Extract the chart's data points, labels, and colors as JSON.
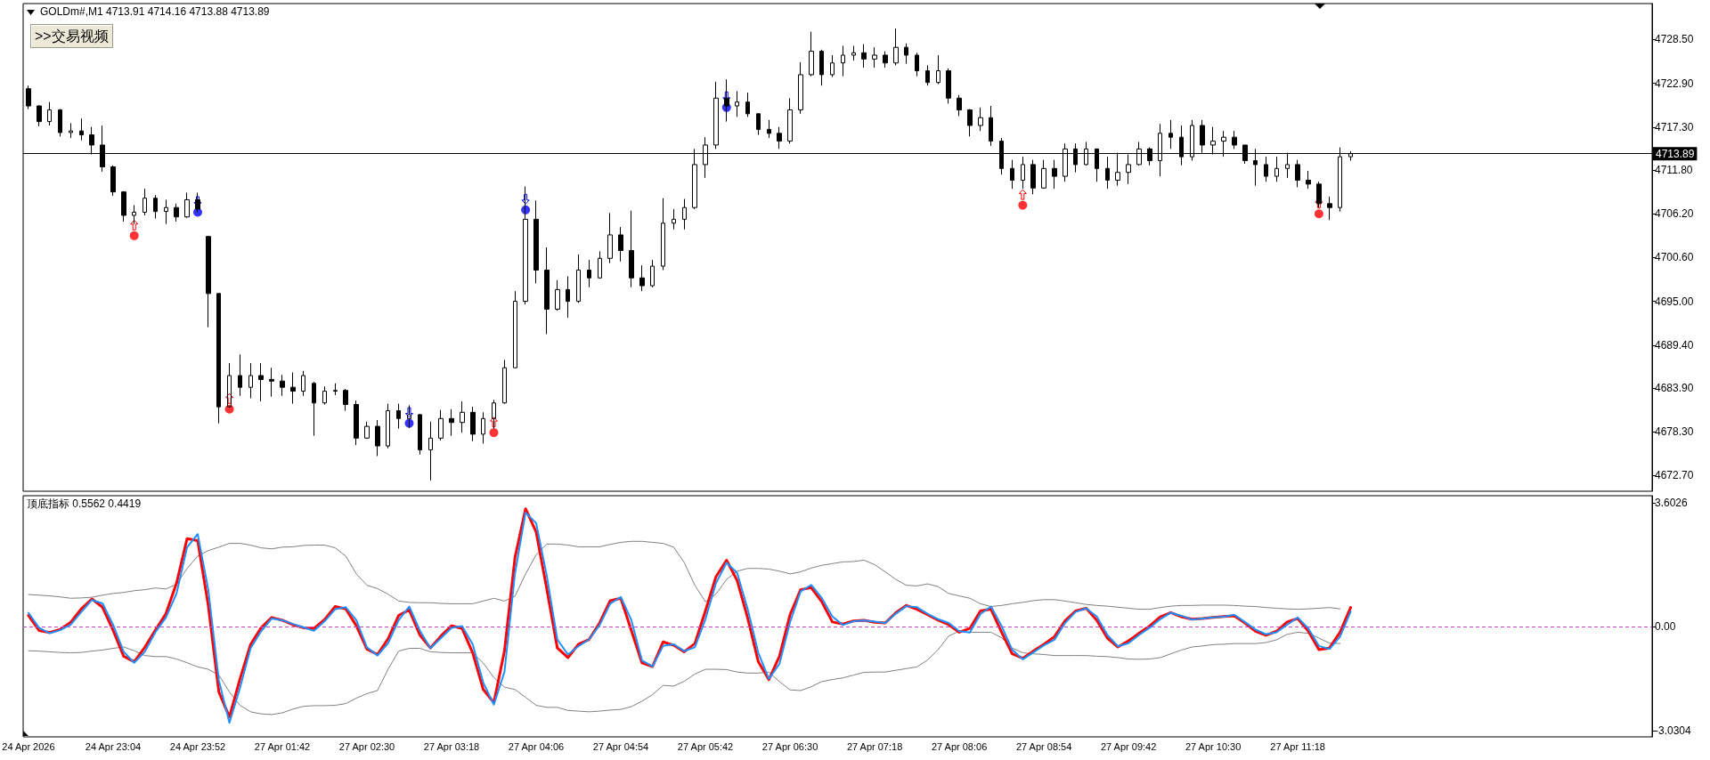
{
  "chart_data": [
    {
      "type": "candlestick",
      "title": "GOLDm#,M1 4713.91 4714.16 4713.88 4713.89",
      "color": "#000000",
      "marker": "circle",
      "tick_labels": "y",
      "categories": [
        null,
        null,
        null,
        null,
        null,
        null,
        null,
        null,
        null,
        null,
        null,
        null,
        null,
        null,
        null,
        null,
        null,
        null,
        null,
        null,
        null,
        null,
        null,
        null,
        null,
        null,
        null,
        null,
        null,
        null,
        null,
        null,
        null,
        null,
        null,
        null,
        null,
        null,
        null,
        null,
        null,
        null,
        null,
        null,
        null,
        null,
        null,
        null,
        null,
        null,
        null,
        null,
        null,
        null,
        null,
        null,
        null,
        null,
        null,
        null,
        null,
        null,
        null,
        null,
        null,
        null,
        null,
        null,
        null,
        null,
        null,
        null,
        null,
        null,
        null,
        null,
        null,
        null,
        null,
        null,
        null,
        null,
        null,
        null,
        null,
        null,
        null,
        null,
        null,
        null,
        null,
        null,
        null,
        null,
        null,
        null,
        null,
        null,
        null,
        null,
        null,
        null,
        null,
        null,
        null,
        null,
        null,
        null,
        null,
        null,
        null,
        null,
        null,
        null,
        null,
        null,
        null,
        null,
        null,
        null,
        null,
        null,
        null,
        null,
        null,
        null,
        null,
        null,
        null,
        null,
        null,
        null,
        null,
        null,
        null,
        null,
        null,
        null,
        null,
        null,
        null,
        null,
        null,
        null,
        null,
        null,
        null,
        null,
        null,
        null,
        null,
        null,
        null,
        null
      ],
      "ohlc": [
        [
          4722.2,
          4722.6,
          4719.6,
          4720.0
        ],
        [
          4720.0,
          4720.1,
          4717.4,
          4718.0
        ],
        [
          4718.0,
          4720.5,
          4717.5,
          4719.5
        ],
        [
          4719.5,
          4719.6,
          4716.1,
          4716.6
        ],
        [
          4716.6,
          4717.8,
          4715.9,
          4716.8
        ],
        [
          4716.8,
          4718.4,
          4715.6,
          4716.3
        ],
        [
          4716.3,
          4717.3,
          4713.8,
          4715.0
        ],
        [
          4715.0,
          4717.5,
          4711.6,
          4712.2
        ],
        [
          4712.2,
          4712.4,
          4708.5,
          4709.0
        ],
        [
          4709.0,
          4709.1,
          4705.2,
          4706.0
        ],
        [
          4706.0,
          4707.3,
          4704.9,
          4706.4
        ],
        [
          4706.4,
          4709.4,
          4706.0,
          4708.2
        ],
        [
          4708.2,
          4708.6,
          4705.6,
          4706.5
        ],
        [
          4706.5,
          4708.0,
          4704.9,
          4707.0
        ],
        [
          4707.0,
          4707.5,
          4705.2,
          4705.8
        ],
        [
          4705.8,
          4708.9,
          4705.7,
          4708.0
        ],
        [
          4708.0,
          4708.9,
          4706.4,
          4706.8
        ],
        [
          4703.3,
          4703.3,
          4691.7,
          4696.0
        ],
        [
          4696.0,
          4696.0,
          4679.4,
          4681.5
        ],
        [
          4681.5,
          4687.1,
          4681.4,
          4685.5
        ],
        [
          4685.5,
          4688.2,
          4682.9,
          4684.0
        ],
        [
          4684.0,
          4687.1,
          4682.6,
          4685.5
        ],
        [
          4685.5,
          4687.1,
          4682.2,
          4685.0
        ],
        [
          4685.0,
          4686.5,
          4682.8,
          4684.8
        ],
        [
          4684.8,
          4685.6,
          4682.9,
          4684.0
        ],
        [
          4684.0,
          4685.9,
          4681.9,
          4683.5
        ],
        [
          4683.5,
          4686.1,
          4682.9,
          4685.5
        ],
        [
          4684.5,
          4684.7,
          4677.8,
          4682.0
        ],
        [
          4682.0,
          4684.1,
          4681.8,
          4683.5
        ],
        [
          4683.5,
          4684.5,
          4683.0,
          4683.6
        ],
        [
          4683.6,
          4683.8,
          4681.0,
          4681.8
        ],
        [
          4681.8,
          4682.3,
          4676.6,
          4677.5
        ],
        [
          4677.5,
          4679.6,
          4677.4,
          4679.0
        ],
        [
          4679.0,
          4679.8,
          4675.2,
          4676.5
        ],
        [
          4676.5,
          4681.9,
          4676.2,
          4681.0
        ],
        [
          4681.0,
          4681.9,
          4678.7,
          4680.0
        ],
        [
          4680.0,
          4681.7,
          4678.8,
          4680.5
        ],
        [
          4680.5,
          4680.6,
          4675.4,
          4676.0
        ],
        [
          4676.0,
          4679.6,
          4672.1,
          4677.5
        ],
        [
          4677.5,
          4681.1,
          4677.2,
          4680.0
        ],
        [
          4680.0,
          4681.2,
          4677.8,
          4679.5
        ],
        [
          4679.5,
          4682.2,
          4678.2,
          4680.8
        ],
        [
          4680.8,
          4681.5,
          4677.1,
          4678.0
        ],
        [
          4678.0,
          4680.8,
          4676.8,
          4680.0
        ],
        [
          4680.0,
          4682.4,
          4678.7,
          4682.0
        ],
        [
          4682.0,
          4687.5,
          4681.9,
          4686.5
        ],
        [
          4686.5,
          4696.3,
          4686.5,
          4695.0
        ],
        [
          4695.0,
          4709.7,
          4694.6,
          4705.5
        ],
        [
          4705.5,
          4707.9,
          4697.3,
          4699.0
        ],
        [
          4699.0,
          4701.9,
          4690.8,
          4694.0
        ],
        [
          4694.0,
          4697.7,
          4693.8,
          4696.5
        ],
        [
          4696.5,
          4698.2,
          4692.9,
          4695.0
        ],
        [
          4695.0,
          4701.0,
          4694.8,
          4699.0
        ],
        [
          4699.0,
          4700.3,
          4696.8,
          4698.0
        ],
        [
          4698.0,
          4701.4,
          4697.9,
          4700.5
        ],
        [
          4700.5,
          4706.3,
          4699.9,
          4703.5
        ],
        [
          4703.5,
          4704.5,
          4700.1,
          4701.5
        ],
        [
          4701.5,
          4706.6,
          4696.8,
          4698.0
        ],
        [
          4698.0,
          4699.6,
          4696.3,
          4697.0
        ],
        [
          4697.0,
          4700.3,
          4696.8,
          4699.5
        ],
        [
          4699.5,
          4708.2,
          4699.0,
          4705.0
        ],
        [
          4705.0,
          4706.8,
          4704.2,
          4705.5
        ],
        [
          4705.5,
          4708.1,
          4704.2,
          4707.0
        ],
        [
          4707.0,
          4714.5,
          4706.8,
          4712.5
        ],
        [
          4712.5,
          4716.0,
          4710.8,
          4715.0
        ],
        [
          4715.0,
          4723.1,
          4714.5,
          4721.0
        ],
        [
          4721.0,
          4723.4,
          4718.0,
          4720.0
        ],
        [
          4720.0,
          4721.9,
          4718.6,
          4720.5
        ],
        [
          4720.5,
          4721.7,
          4718.6,
          4719.0
        ],
        [
          4719.0,
          4719.0,
          4716.3,
          4717.0
        ],
        [
          4717.0,
          4718.2,
          4715.9,
          4716.5
        ],
        [
          4716.5,
          4717.3,
          4714.5,
          4715.5
        ],
        [
          4715.5,
          4721.0,
          4715.2,
          4719.5
        ],
        [
          4719.5,
          4725.6,
          4719.0,
          4724.0
        ],
        [
          4724.0,
          4729.5,
          4723.8,
          4727.0
        ],
        [
          4727.0,
          4727.2,
          4722.6,
          4724.0
        ],
        [
          4724.0,
          4726.5,
          4723.7,
          4725.5
        ],
        [
          4725.5,
          4727.7,
          4723.8,
          4726.5
        ],
        [
          4726.5,
          4727.7,
          4725.8,
          4726.8
        ],
        [
          4726.8,
          4727.9,
          4724.9,
          4726.0
        ],
        [
          4726.0,
          4727.5,
          4724.9,
          4726.5
        ],
        [
          4726.5,
          4727.0,
          4724.9,
          4725.5
        ],
        [
          4725.5,
          4729.9,
          4725.2,
          4727.5
        ],
        [
          4727.5,
          4728.0,
          4725.4,
          4726.5
        ],
        [
          4726.5,
          4726.8,
          4723.8,
          4724.5
        ],
        [
          4724.5,
          4725.2,
          4722.6,
          4723.0
        ],
        [
          4723.0,
          4726.5,
          4722.8,
          4724.5
        ],
        [
          4724.5,
          4724.8,
          4720.3,
          4721.0
        ],
        [
          4721.0,
          4721.4,
          4718.7,
          4719.5
        ],
        [
          4719.5,
          4719.6,
          4716.1,
          4717.5
        ],
        [
          4717.5,
          4719.8,
          4716.8,
          4718.5
        ],
        [
          4718.5,
          4720.0,
          4714.9,
          4715.5
        ],
        [
          4715.5,
          4715.9,
          4711.2,
          4712.0
        ],
        [
          4712.0,
          4713.1,
          4709.4,
          4710.5
        ],
        [
          4710.5,
          4713.5,
          4709.4,
          4712.5
        ],
        [
          4712.5,
          4713.1,
          4708.7,
          4709.5
        ],
        [
          4709.5,
          4713.1,
          4709.4,
          4712.0
        ],
        [
          4712.0,
          4713.1,
          4709.4,
          4711.0
        ],
        [
          4711.0,
          4715.2,
          4710.3,
          4714.5
        ],
        [
          4714.5,
          4715.2,
          4711.5,
          4712.5
        ],
        [
          4712.5,
          4715.4,
          4712.4,
          4714.5
        ],
        [
          4714.5,
          4714.5,
          4710.3,
          4712.0
        ],
        [
          4712.0,
          4713.5,
          4709.4,
          4710.5
        ],
        [
          4710.5,
          4714.0,
          4709.8,
          4711.5
        ],
        [
          4711.5,
          4713.8,
          4710.0,
          4712.5
        ],
        [
          4712.5,
          4715.4,
          4712.4,
          4714.5
        ],
        [
          4714.5,
          4714.7,
          4712.4,
          4713.0
        ],
        [
          4713.0,
          4717.7,
          4711.0,
          4716.5
        ],
        [
          4716.5,
          4718.2,
          4714.5,
          4716.0
        ],
        [
          4716.0,
          4717.5,
          4712.4,
          4713.5
        ],
        [
          4713.5,
          4718.2,
          4713.0,
          4717.5
        ],
        [
          4717.5,
          4718.2,
          4714.0,
          4715.0
        ],
        [
          4715.0,
          4717.3,
          4713.8,
          4715.5
        ],
        [
          4715.5,
          4716.8,
          4713.5,
          4716.0
        ],
        [
          4716.0,
          4716.8,
          4714.5,
          4715.0
        ],
        [
          4715.0,
          4715.0,
          4712.6,
          4713.0
        ],
        [
          4713.0,
          4714.5,
          4709.8,
          4712.5
        ],
        [
          4712.5,
          4713.5,
          4710.3,
          4711.0
        ],
        [
          4711.0,
          4713.5,
          4710.3,
          4712.0
        ],
        [
          4712.0,
          4714.0,
          4710.8,
          4712.5
        ],
        [
          4712.5,
          4713.1,
          4709.6,
          4710.5
        ],
        [
          4710.5,
          4711.7,
          4709.4,
          4710.0
        ],
        [
          4710.0,
          4710.3,
          4707.0,
          4707.5
        ],
        [
          4707.5,
          4708.4,
          4705.4,
          4707.0
        ],
        [
          4707.0,
          4714.7,
          4706.5,
          4713.5
        ],
        [
          4713.5,
          4714.2,
          4713.0,
          4713.9
        ],
        null,
        null,
        null,
        null,
        null,
        null,
        null,
        null,
        null,
        null,
        null,
        null,
        null,
        null,
        null,
        null,
        null,
        null,
        null,
        null,
        null,
        null,
        null,
        null,
        null,
        null,
        null,
        null
      ],
      "series": [
        {
          "type": "scatter",
          "color": "#ff0000",
          "values": [
            null,
            null,
            null,
            null,
            null,
            null,
            null,
            null,
            null,
            null,
            4703.4,
            null,
            null,
            null,
            null,
            null,
            null,
            null,
            null,
            4681.2,
            null,
            null,
            null,
            null,
            null,
            null,
            null,
            null,
            null,
            null,
            null,
            null,
            null,
            null,
            null,
            null,
            null,
            null,
            null,
            null,
            null,
            null,
            null,
            null,
            4678.2,
            null,
            null,
            null,
            null,
            null,
            null,
            null,
            null,
            null,
            null,
            null,
            null,
            null,
            null,
            null,
            null,
            null,
            null,
            null,
            null,
            null,
            null,
            null,
            null,
            null,
            null,
            null,
            null,
            null,
            null,
            null,
            null,
            null,
            null,
            null,
            null,
            null,
            null,
            null,
            null,
            null,
            null,
            null,
            null,
            null,
            null,
            null,
            null,
            null,
            4707.3,
            null,
            null,
            null,
            null,
            null,
            null,
            null,
            null,
            null,
            null,
            null,
            null,
            null,
            null,
            null,
            null,
            null,
            null,
            null,
            null,
            null,
            null,
            null,
            null,
            null,
            null,
            null,
            4706.2,
            null,
            null,
            null,
            null,
            null,
            null,
            null,
            null,
            null,
            null,
            null,
            null,
            null,
            null,
            null,
            null,
            null,
            null,
            null,
            null,
            null,
            null,
            null,
            null,
            null,
            null,
            null,
            null,
            null,
            null,
            null
          ]
        },
        {
          "type": "scatter",
          "color": "#0000ff",
          "values": [
            null,
            null,
            null,
            null,
            null,
            null,
            null,
            null,
            null,
            null,
            null,
            null,
            null,
            null,
            null,
            null,
            4706.4,
            null,
            null,
            null,
            null,
            null,
            null,
            null,
            null,
            null,
            null,
            null,
            null,
            null,
            null,
            null,
            null,
            null,
            null,
            null,
            4679.4,
            null,
            null,
            null,
            null,
            null,
            null,
            null,
            null,
            null,
            null,
            4706.7,
            null,
            null,
            null,
            null,
            null,
            null,
            null,
            null,
            null,
            null,
            null,
            null,
            null,
            null,
            null,
            null,
            null,
            null,
            4719.8,
            null,
            null,
            null,
            null,
            null,
            null,
            null,
            null,
            null,
            null,
            null,
            null,
            null,
            null,
            null,
            null,
            null,
            null,
            null,
            null,
            null,
            null,
            null,
            null,
            null,
            null,
            null,
            null,
            null,
            null,
            null,
            null,
            null,
            null,
            null,
            null,
            null,
            null,
            null,
            null,
            null,
            null,
            null,
            null,
            null,
            null,
            null,
            null,
            null,
            null,
            null,
            null,
            null,
            null,
            null,
            null,
            null,
            null,
            null,
            null,
            null,
            null,
            null,
            null,
            null,
            null,
            null,
            null,
            null,
            null,
            null,
            null,
            null,
            null,
            null,
            null,
            null,
            null,
            null,
            null,
            null,
            null,
            null,
            null,
            null,
            null,
            null
          ]
        }
      ],
      "ylim": [
        4670.7,
        4733.1
      ],
      "yticks": [
        {
          "value": 4672.7,
          "label": "4672.70"
        },
        {
          "value": 4678.3,
          "label": "4678.30"
        },
        {
          "value": 4683.9,
          "label": "4683.90"
        },
        {
          "value": 4689.4,
          "label": "4689.40"
        },
        {
          "value": 4695,
          "label": "4695.00"
        },
        {
          "value": 4700.6,
          "label": "4700.60"
        },
        {
          "value": 4706.2,
          "label": "4706.20"
        },
        {
          "value": 4711.8,
          "label": "4711.80"
        },
        {
          "value": 4717.3,
          "label": "4717.30"
        },
        {
          "value": 4722.9,
          "label": "4722.90"
        },
        {
          "value": 4728.5,
          "label": "4728.50"
        }
      ],
      "ref_lines": [
        {
          "axis": "y",
          "value": 4713.89,
          "label": "4713.89",
          "color": "#000000"
        }
      ],
      "annotations": [
        ">>交易视频"
      ],
      "grid": false
    },
    {
      "type": "line",
      "title": "顶底指标 0.5562 0.4419",
      "marker": "none",
      "categories": [
        "24 Apr 2026",
        null,
        null,
        null,
        null,
        null,
        null,
        null,
        "24 Apr 23:04",
        null,
        null,
        null,
        null,
        null,
        null,
        null,
        "24 Apr 23:52",
        null,
        null,
        null,
        null,
        null,
        null,
        null,
        "27 Apr 01:42",
        null,
        null,
        null,
        null,
        null,
        null,
        null,
        "27 Apr 02:30",
        null,
        null,
        null,
        null,
        null,
        null,
        null,
        "27 Apr 03:18",
        null,
        null,
        null,
        null,
        null,
        null,
        null,
        "27 Apr 04:06",
        null,
        null,
        null,
        null,
        null,
        null,
        null,
        "27 Apr 04:54",
        null,
        null,
        null,
        null,
        null,
        null,
        null,
        "27 Apr 05:42",
        null,
        null,
        null,
        null,
        null,
        null,
        null,
        "27 Apr 06:30",
        null,
        null,
        null,
        null,
        null,
        null,
        null,
        "27 Apr 07:18",
        null,
        null,
        null,
        null,
        null,
        null,
        null,
        "27 Apr 08:06",
        null,
        null,
        null,
        null,
        null,
        null,
        null,
        "27 Apr 08:54",
        null,
        null,
        null,
        null,
        null,
        null,
        null,
        "27 Apr 09:42",
        null,
        null,
        null,
        null,
        null,
        null,
        null,
        "27 Apr 10:30",
        null,
        null,
        null,
        null,
        null,
        null,
        null,
        "27 Apr 11:18",
        null,
        null,
        null,
        null,
        null,
        null,
        null,
        null,
        null,
        null,
        null,
        null,
        null,
        null,
        null,
        null,
        null,
        null,
        null,
        null,
        null,
        null,
        null,
        null,
        null,
        null,
        null,
        null,
        null,
        null,
        null,
        null,
        null
      ],
      "series": [
        {
          "color": "#808080",
          "values": [
            0.94,
            0.92,
            0.9,
            0.87,
            0.83,
            0.84,
            0.86,
            0.92,
            0.97,
            1.0,
            1.05,
            1.08,
            1.13,
            1.1,
            1.24,
            1.7,
            2.06,
            2.22,
            2.32,
            2.43,
            2.43,
            2.38,
            2.3,
            2.27,
            2.32,
            2.33,
            2.37,
            2.38,
            2.38,
            2.3,
            2.06,
            1.54,
            1.21,
            1.11,
            0.95,
            0.75,
            0.71,
            0.7,
            0.7,
            0.68,
            0.67,
            0.67,
            0.67,
            0.75,
            0.83,
            0.75,
            0.89,
            1.54,
            2.1,
            2.41,
            2.41,
            2.38,
            2.33,
            2.33,
            2.33,
            2.4,
            2.46,
            2.49,
            2.49,
            2.46,
            2.43,
            2.32,
            1.87,
            1.21,
            0.73,
            0.95,
            1.38,
            1.62,
            1.7,
            1.7,
            1.68,
            1.62,
            1.54,
            1.6,
            1.71,
            1.79,
            1.84,
            1.89,
            1.9,
            1.94,
            1.81,
            1.6,
            1.38,
            1.21,
            1.19,
            1.25,
            1.17,
            0.97,
            0.9,
            0.83,
            0.67,
            0.59,
            0.62,
            0.67,
            0.71,
            0.76,
            0.79,
            0.79,
            0.75,
            0.7,
            0.65,
            0.62,
            0.6,
            0.57,
            0.54,
            0.51,
            0.51,
            0.56,
            0.6,
            0.62,
            0.62,
            0.63,
            0.63,
            0.63,
            0.62,
            0.6,
            0.59,
            0.56,
            0.54,
            0.52,
            0.51,
            0.52,
            0.54,
            0.56,
            0.52,
            null,
            null,
            null,
            null,
            null,
            null,
            null,
            null,
            null,
            null,
            null,
            null,
            null,
            null,
            null,
            null,
            null,
            null,
            null,
            null,
            null,
            null,
            null,
            null,
            null,
            null,
            null,
            null,
            null
          ]
        },
        {
          "color": "#808080",
          "values": [
            -0.7,
            -0.71,
            -0.73,
            -0.75,
            -0.76,
            -0.75,
            -0.71,
            -0.68,
            -0.63,
            -0.59,
            -0.7,
            -0.84,
            -0.87,
            -0.87,
            -0.94,
            -1.05,
            -1.17,
            -1.24,
            -1.41,
            -1.9,
            -2.29,
            -2.48,
            -2.54,
            -2.56,
            -2.51,
            -2.4,
            -2.32,
            -2.3,
            -2.3,
            -2.29,
            -2.24,
            -2.08,
            -1.95,
            -1.86,
            -1.24,
            -0.71,
            -0.63,
            -0.63,
            -0.73,
            -0.75,
            -0.76,
            -0.76,
            -0.76,
            -1.06,
            -1.48,
            -1.76,
            -1.83,
            -2.06,
            -2.29,
            -2.35,
            -2.35,
            -2.44,
            -2.46,
            -2.48,
            -2.46,
            -2.43,
            -2.41,
            -2.33,
            -2.17,
            -1.98,
            -1.71,
            -1.73,
            -1.59,
            -1.38,
            -1.24,
            -1.24,
            -1.25,
            -1.32,
            -1.35,
            -1.35,
            -1.32,
            -1.6,
            -1.84,
            -1.86,
            -1.75,
            -1.6,
            -1.54,
            -1.49,
            -1.41,
            -1.33,
            -1.32,
            -1.32,
            -1.27,
            -1.22,
            -1.17,
            -0.97,
            -0.67,
            -0.27,
            -0.13,
            -0.16,
            -0.16,
            -0.16,
            -0.32,
            -0.62,
            -0.76,
            -0.79,
            -0.81,
            -0.84,
            -0.84,
            -0.84,
            -0.84,
            -0.86,
            -0.87,
            -0.9,
            -0.94,
            -0.95,
            -0.94,
            -0.9,
            -0.79,
            -0.68,
            -0.59,
            -0.56,
            -0.52,
            -0.51,
            -0.49,
            -0.49,
            -0.49,
            -0.46,
            -0.38,
            -0.22,
            -0.16,
            -0.19,
            -0.33,
            -0.48,
            -0.49,
            null,
            null,
            null,
            null,
            null,
            null,
            null,
            null,
            null,
            null,
            null,
            null,
            null,
            null,
            null,
            null,
            null,
            null,
            null,
            null,
            null,
            null,
            null,
            null,
            null,
            null,
            null,
            null,
            null
          ]
        },
        {
          "color": "#ff0000",
          "values": [
            0.33,
            -0.11,
            -0.17,
            -0.08,
            0.13,
            0.52,
            0.81,
            0.57,
            -0.1,
            -0.86,
            -1.02,
            -0.6,
            -0.1,
            0.38,
            1.27,
            2.57,
            2.51,
            0.62,
            -1.9,
            -2.63,
            -1.52,
            -0.52,
            -0.03,
            0.27,
            0.19,
            0.06,
            -0.03,
            -0.05,
            0.21,
            0.59,
            0.52,
            0.03,
            -0.65,
            -0.81,
            -0.35,
            0.33,
            0.49,
            -0.24,
            -0.62,
            -0.27,
            0.03,
            -0.05,
            -0.76,
            -1.83,
            -2.21,
            -0.71,
            2.02,
            3.44,
            2.76,
            1.11,
            -0.62,
            -0.9,
            -0.51,
            -0.37,
            0.11,
            0.76,
            0.83,
            -0.11,
            -1.05,
            -1.16,
            -0.44,
            -0.54,
            -0.73,
            -0.49,
            0.46,
            1.46,
            1.94,
            1.35,
            0.25,
            -1.02,
            -1.54,
            -0.86,
            0.35,
            1.08,
            1.14,
            0.73,
            0.14,
            0.08,
            0.17,
            0.19,
            0.13,
            0.11,
            0.41,
            0.62,
            0.51,
            0.35,
            0.19,
            0.06,
            -0.16,
            -0.05,
            0.46,
            0.51,
            -0.16,
            -0.79,
            -0.92,
            -0.71,
            -0.51,
            -0.29,
            0.17,
            0.46,
            0.54,
            0.19,
            -0.33,
            -0.59,
            -0.41,
            -0.19,
            0.02,
            0.29,
            0.41,
            0.29,
            0.22,
            0.24,
            0.27,
            0.3,
            0.32,
            0.11,
            -0.13,
            -0.25,
            -0.13,
            0.14,
            0.24,
            -0.13,
            -0.67,
            -0.62,
            -0.16,
            0.56,
            null,
            null,
            null,
            null,
            null,
            null,
            null,
            null,
            null,
            null,
            null,
            null,
            null,
            null,
            null,
            null,
            null,
            null,
            null,
            null,
            null,
            null,
            null,
            null,
            null,
            null,
            null,
            null
          ]
        },
        {
          "color": "#1e90ff",
          "values": [
            0.41,
            -0.03,
            -0.19,
            -0.1,
            0.06,
            0.43,
            0.78,
            0.68,
            0.06,
            -0.73,
            -1.05,
            -0.73,
            -0.16,
            0.27,
            0.97,
            2.32,
            2.7,
            1.08,
            -1.56,
            -2.8,
            -1.78,
            -0.63,
            -0.13,
            0.24,
            0.19,
            0.08,
            -0.02,
            -0.12,
            0.16,
            0.51,
            0.57,
            0.19,
            -0.6,
            -0.84,
            -0.48,
            0.19,
            0.59,
            -0.11,
            -0.63,
            -0.33,
            -0.03,
            0.02,
            -0.51,
            -1.63,
            -2.27,
            -1.32,
            1.56,
            3.33,
            3.02,
            1.49,
            -0.37,
            -0.81,
            -0.57,
            -0.37,
            0.05,
            0.67,
            0.87,
            0.19,
            -0.98,
            -1.16,
            -0.56,
            -0.51,
            -0.71,
            -0.6,
            0.22,
            1.27,
            1.87,
            1.57,
            0.51,
            -0.76,
            -1.52,
            -1.08,
            0.13,
            1.03,
            1.22,
            0.84,
            0.3,
            0.05,
            0.16,
            0.18,
            0.15,
            0.11,
            0.38,
            0.6,
            0.57,
            0.38,
            0.22,
            0.11,
            -0.13,
            -0.17,
            0.37,
            0.59,
            0.02,
            -0.67,
            -0.95,
            -0.75,
            -0.54,
            -0.38,
            0.11,
            0.43,
            0.54,
            0.3,
            -0.24,
            -0.57,
            -0.48,
            -0.24,
            -0.03,
            0.22,
            0.41,
            0.32,
            0.21,
            0.24,
            0.27,
            0.29,
            0.35,
            0.14,
            -0.08,
            -0.22,
            -0.16,
            0.06,
            0.27,
            -0.05,
            -0.56,
            -0.65,
            -0.29,
            0.44,
            null,
            null,
            null,
            null,
            null,
            null,
            null,
            null,
            null,
            null,
            null,
            null,
            null,
            null,
            null,
            null,
            null,
            null,
            null,
            null,
            null,
            null,
            null,
            null,
            null,
            null,
            null,
            null
          ]
        }
      ],
      "ylim": [
        -3.21,
        3.82
      ],
      "yticks": [
        -3.0304,
        {
          "value": 0,
          "label": "0.00"
        },
        3.6026
      ],
      "ref_lines": [
        {
          "axis": "y",
          "value": 0,
          "color": "#cc44cc",
          "line_style": "dashed"
        }
      ],
      "grid": false
    }
  ]
}
